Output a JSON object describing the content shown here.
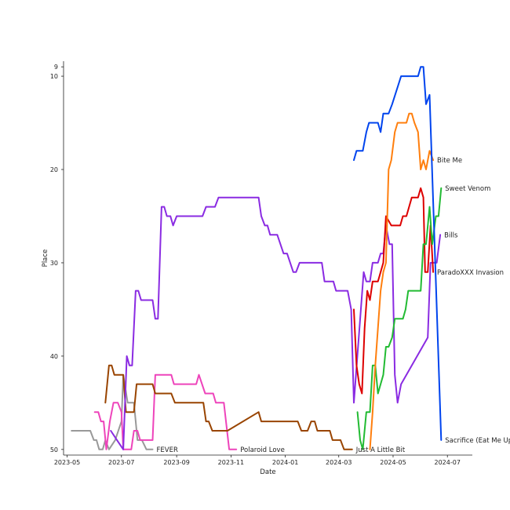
{
  "chart_data": {
    "type": "line",
    "title": "",
    "xlabel": "Date",
    "ylabel": "Place",
    "y_inverted": true,
    "ylim": [
      8.9,
      50.1
    ],
    "xlim": [
      "2023-04-27",
      "2024-07-29"
    ],
    "grid": false,
    "legend": "none (series names placed at line ends)",
    "y_ticks": [
      9,
      10,
      20,
      30,
      40,
      50
    ],
    "x_ticks": [
      "2023-05",
      "2023-07",
      "2023-09",
      "2023-11",
      "2024-01",
      "2024-03",
      "2024-05",
      "2024-07"
    ],
    "series": [
      {
        "name": "FEVER",
        "color": "#999999",
        "points": [
          [
            "2023-05-06",
            48
          ],
          [
            "2023-05-27",
            48
          ],
          [
            "2023-05-31",
            49
          ],
          [
            "2023-06-03",
            49
          ],
          [
            "2023-06-06",
            50
          ],
          [
            "2023-06-10",
            50
          ],
          [
            "2023-06-13",
            49
          ],
          [
            "2023-06-17",
            50
          ],
          [
            "2023-06-24",
            49
          ],
          [
            "2023-07-01",
            47
          ],
          [
            "2023-07-03",
            42
          ],
          [
            "2023-07-08",
            45
          ],
          [
            "2023-07-15",
            45
          ],
          [
            "2023-07-19",
            49
          ],
          [
            "2023-07-24",
            49
          ],
          [
            "2023-07-29",
            50
          ],
          [
            "2023-08-05",
            50
          ]
        ]
      },
      {
        "name": "Polaroid Love",
        "color": "#ee44bb",
        "points": [
          [
            "2023-06-01",
            46
          ],
          [
            "2023-06-05",
            46
          ],
          [
            "2023-06-08",
            47
          ],
          [
            "2023-06-11",
            47
          ],
          [
            "2023-06-14",
            50
          ],
          [
            "2023-06-18",
            47
          ],
          [
            "2023-06-22",
            45
          ],
          [
            "2023-06-27",
            45
          ],
          [
            "2023-07-01",
            46
          ],
          [
            "2023-07-03",
            50
          ],
          [
            "2023-07-12",
            50
          ],
          [
            "2023-07-15",
            48
          ],
          [
            "2023-07-19",
            48
          ],
          [
            "2023-07-22",
            49
          ],
          [
            "2023-08-05",
            49
          ],
          [
            "2023-08-08",
            42
          ],
          [
            "2023-08-26",
            42
          ],
          [
            "2023-08-29",
            43
          ],
          [
            "2023-09-23",
            43
          ],
          [
            "2023-09-26",
            42
          ],
          [
            "2023-10-03",
            44
          ],
          [
            "2023-10-12",
            44
          ],
          [
            "2023-10-15",
            45
          ],
          [
            "2023-10-24",
            45
          ],
          [
            "2023-10-30",
            50
          ],
          [
            "2023-11-07",
            50
          ]
        ]
      },
      {
        "name": "Just A Little Bit",
        "color": "#994400",
        "points": [
          [
            "2023-06-13",
            45
          ],
          [
            "2023-06-17",
            41
          ],
          [
            "2023-06-20",
            41
          ],
          [
            "2023-06-23",
            42
          ],
          [
            "2023-07-03",
            42
          ],
          [
            "2023-07-06",
            46
          ],
          [
            "2023-07-15",
            46
          ],
          [
            "2023-07-18",
            43
          ],
          [
            "2023-08-05",
            43
          ],
          [
            "2023-08-08",
            44
          ],
          [
            "2023-08-26",
            44
          ],
          [
            "2023-08-30",
            45
          ],
          [
            "2023-10-01",
            45
          ],
          [
            "2023-10-04",
            47
          ],
          [
            "2023-10-07",
            47
          ],
          [
            "2023-10-11",
            48
          ],
          [
            "2023-10-28",
            48
          ],
          [
            "2023-12-02",
            46
          ],
          [
            "2023-12-05",
            47
          ],
          [
            "2024-01-15",
            47
          ],
          [
            "2024-01-19",
            48
          ],
          [
            "2024-01-26",
            48
          ],
          [
            "2024-01-30",
            47
          ],
          [
            "2024-02-03",
            47
          ],
          [
            "2024-02-06",
            48
          ],
          [
            "2024-02-20",
            48
          ],
          [
            "2024-02-23",
            49
          ],
          [
            "2024-03-03",
            49
          ],
          [
            "2024-03-07",
            50
          ],
          [
            "2024-03-16",
            50
          ]
        ]
      },
      {
        "name": "Bills",
        "color": "#8a2be2",
        "points": [
          [
            "2023-06-19",
            48
          ],
          [
            "2023-06-26",
            49
          ],
          [
            "2023-07-03",
            50
          ],
          [
            "2023-07-07",
            40
          ],
          [
            "2023-07-10",
            41
          ],
          [
            "2023-07-13",
            41
          ],
          [
            "2023-07-17",
            33
          ],
          [
            "2023-07-20",
            33
          ],
          [
            "2023-07-23",
            34
          ],
          [
            "2023-08-05",
            34
          ],
          [
            "2023-08-08",
            36
          ],
          [
            "2023-08-11",
            36
          ],
          [
            "2023-08-15",
            24
          ],
          [
            "2023-08-18",
            24
          ],
          [
            "2023-08-21",
            25
          ],
          [
            "2023-08-25",
            25
          ],
          [
            "2023-08-28",
            26
          ],
          [
            "2023-09-01",
            25
          ],
          [
            "2023-09-30",
            25
          ],
          [
            "2023-10-04",
            24
          ],
          [
            "2023-10-14",
            24
          ],
          [
            "2023-10-18",
            23
          ],
          [
            "2023-12-02",
            23
          ],
          [
            "2023-12-05",
            25
          ],
          [
            "2023-12-09",
            26
          ],
          [
            "2023-12-12",
            26
          ],
          [
            "2023-12-15",
            27
          ],
          [
            "2023-12-23",
            27
          ],
          [
            "2023-12-30",
            29
          ],
          [
            "2024-01-03",
            29
          ],
          [
            "2024-01-10",
            31
          ],
          [
            "2024-01-13",
            31
          ],
          [
            "2024-01-17",
            30
          ],
          [
            "2024-02-11",
            30
          ],
          [
            "2024-02-14",
            32
          ],
          [
            "2024-02-24",
            32
          ],
          [
            "2024-02-27",
            33
          ],
          [
            "2024-03-11",
            33
          ],
          [
            "2024-03-15",
            35
          ],
          [
            "2024-03-18",
            45
          ],
          [
            "2024-03-29",
            31
          ],
          [
            "2024-04-01",
            32
          ],
          [
            "2024-04-05",
            32
          ],
          [
            "2024-04-08",
            30
          ],
          [
            "2024-04-14",
            30
          ],
          [
            "2024-04-17",
            29
          ],
          [
            "2024-04-20",
            29
          ],
          [
            "2024-04-23",
            26
          ],
          [
            "2024-04-27",
            28
          ],
          [
            "2024-04-30",
            28
          ],
          [
            "2024-05-03",
            42
          ],
          [
            "2024-05-06",
            45
          ],
          [
            "2024-05-10",
            43
          ],
          [
            "2024-06-09",
            38
          ],
          [
            "2024-06-12",
            30
          ],
          [
            "2024-06-19",
            30
          ],
          [
            "2024-06-23",
            27
          ]
        ]
      },
      {
        "name": "ParadoXXX Invasion",
        "color": "#dd0000",
        "points": [
          [
            "2024-03-18",
            35
          ],
          [
            "2024-03-21",
            41
          ],
          [
            "2024-03-24",
            43
          ],
          [
            "2024-03-27",
            44
          ],
          [
            "2024-03-30",
            37
          ],
          [
            "2024-04-02",
            33
          ],
          [
            "2024-04-05",
            34
          ],
          [
            "2024-04-08",
            32
          ],
          [
            "2024-04-14",
            32
          ],
          [
            "2024-04-17",
            31
          ],
          [
            "2024-04-20",
            30
          ],
          [
            "2024-04-23",
            25
          ],
          [
            "2024-04-29",
            26
          ],
          [
            "2024-05-09",
            26
          ],
          [
            "2024-05-12",
            25
          ],
          [
            "2024-05-16",
            25
          ],
          [
            "2024-05-22",
            23
          ],
          [
            "2024-05-29",
            23
          ],
          [
            "2024-06-01",
            22
          ],
          [
            "2024-06-04",
            23
          ],
          [
            "2024-06-06",
            31
          ],
          [
            "2024-06-09",
            31
          ],
          [
            "2024-06-12",
            26
          ],
          [
            "2024-06-15",
            31
          ]
        ]
      },
      {
        "name": "Sweet Venom",
        "color": "#22bb33",
        "points": [
          [
            "2024-03-22",
            46
          ],
          [
            "2024-03-25",
            49
          ],
          [
            "2024-03-28",
            50
          ],
          [
            "2024-04-01",
            46
          ],
          [
            "2024-04-05",
            46
          ],
          [
            "2024-04-08",
            41
          ],
          [
            "2024-04-11",
            41
          ],
          [
            "2024-04-14",
            44
          ],
          [
            "2024-04-20",
            42
          ],
          [
            "2024-04-23",
            39
          ],
          [
            "2024-04-26",
            39
          ],
          [
            "2024-04-30",
            38
          ],
          [
            "2024-05-03",
            36
          ],
          [
            "2024-05-12",
            36
          ],
          [
            "2024-05-15",
            35
          ],
          [
            "2024-05-18",
            33
          ],
          [
            "2024-06-01",
            33
          ],
          [
            "2024-06-04",
            28
          ],
          [
            "2024-06-07",
            28
          ],
          [
            "2024-06-11",
            24
          ],
          [
            "2024-06-14",
            28
          ],
          [
            "2024-06-18",
            25
          ],
          [
            "2024-06-21",
            25
          ],
          [
            "2024-06-24",
            22
          ]
        ]
      },
      {
        "name": "Bite Me",
        "color": "#ff7f0e",
        "points": [
          [
            "2024-04-05",
            50
          ],
          [
            "2024-04-08",
            46
          ],
          [
            "2024-04-11",
            41
          ],
          [
            "2024-04-14",
            37
          ],
          [
            "2024-04-17",
            33
          ],
          [
            "2024-04-20",
            31
          ],
          [
            "2024-04-23",
            30
          ],
          [
            "2024-04-26",
            20
          ],
          [
            "2024-04-29",
            19
          ],
          [
            "2024-05-03",
            16
          ],
          [
            "2024-05-06",
            15
          ],
          [
            "2024-05-16",
            15
          ],
          [
            "2024-05-19",
            14
          ],
          [
            "2024-05-22",
            14
          ],
          [
            "2024-05-25",
            15
          ],
          [
            "2024-05-29",
            16
          ],
          [
            "2024-06-01",
            20
          ],
          [
            "2024-06-04",
            19
          ],
          [
            "2024-06-07",
            20
          ],
          [
            "2024-06-11",
            18
          ],
          [
            "2024-06-15",
            19
          ]
        ]
      },
      {
        "name": "Sacrifice (Eat Me Up)",
        "color": "#0044ee",
        "points": [
          [
            "2024-03-18",
            19
          ],
          [
            "2024-03-21",
            18
          ],
          [
            "2024-03-28",
            18
          ],
          [
            "2024-04-01",
            16
          ],
          [
            "2024-04-04",
            15
          ],
          [
            "2024-04-14",
            15
          ],
          [
            "2024-04-17",
            16
          ],
          [
            "2024-04-20",
            14
          ],
          [
            "2024-04-26",
            14
          ],
          [
            "2024-04-30",
            13
          ],
          [
            "2024-05-10",
            10
          ],
          [
            "2024-05-29",
            10
          ],
          [
            "2024-06-01",
            9
          ],
          [
            "2024-06-04",
            9
          ],
          [
            "2024-06-07",
            13
          ],
          [
            "2024-06-11",
            12
          ],
          [
            "2024-06-24",
            49
          ]
        ]
      }
    ]
  }
}
